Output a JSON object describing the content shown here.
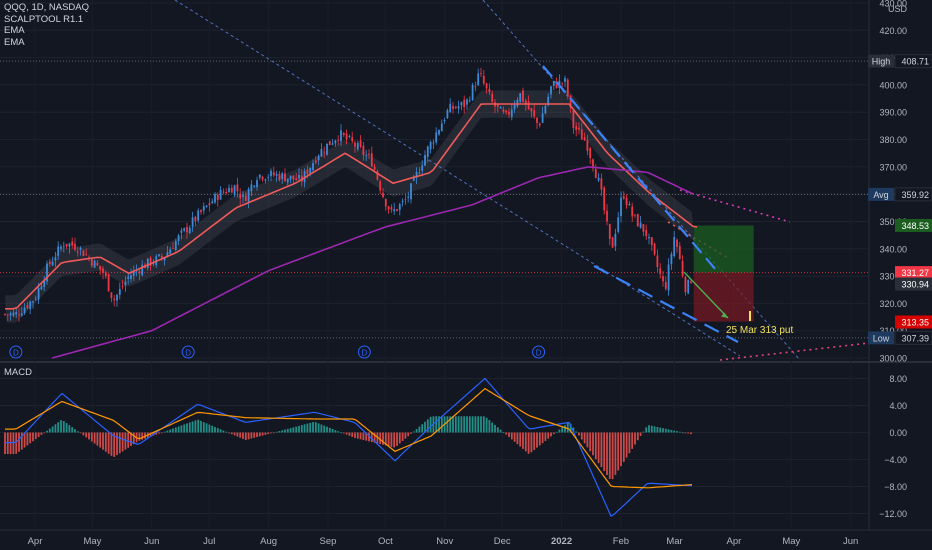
{
  "legend": {
    "symbol": "QQQ, 1D, NASDAQ",
    "indicator1": "SCALPTOOL R1.1",
    "indicator2": "EMA",
    "indicator3": "EMA"
  },
  "currency": "USD",
  "macd_label": "MACD",
  "annotation": "25 Mar 313 put",
  "colors": {
    "background": "#131722",
    "up": "#3d8bd8",
    "down": "#f23645",
    "ema_fast": "#f05a5a",
    "ema_slow": "#9c27b0",
    "macd_line": "#2962ff",
    "signal_line": "#ff9800",
    "hist_pos": "#26a69a",
    "hist_neg": "#ef5350",
    "trendline": "#5b7fd8",
    "target_zone": "#1b5e20",
    "stop_zone": "#7a1a22"
  },
  "chart_data": {
    "type": "line",
    "title": "QQQ, 1D, NASDAQ",
    "price_axis": {
      "ylim": [
        300,
        430
      ],
      "ticks": [
        300,
        310,
        320,
        330,
        340,
        350,
        360,
        370,
        380,
        390,
        400,
        410,
        420,
        430
      ],
      "unit": "USD"
    },
    "macd_axis": {
      "ylim": [
        -14,
        10
      ],
      "ticks": [
        "8.00",
        "4.00",
        "0.00",
        "−4.00",
        "−8.00",
        "−12.00"
      ]
    },
    "x_ticks": [
      "Apr",
      "May",
      "Jun",
      "Jul",
      "Aug",
      "Sep",
      "Oct",
      "Nov",
      "Dec",
      "2022",
      "Feb",
      "Mar",
      "Apr",
      "May",
      "Jun"
    ],
    "price_labels": [
      {
        "text": "High",
        "value": "408.71"
      },
      {
        "text": "Avg",
        "value": "359.92"
      },
      {
        "text": "",
        "value": "348.53"
      },
      {
        "text": "",
        "value": "331.27"
      },
      {
        "text": "",
        "value": "330.94"
      },
      {
        "text": "",
        "value": "313.35"
      },
      {
        "text": "Low",
        "value": "307.39"
      }
    ],
    "close_series": [
      {
        "date": "2021-03-22",
        "close": 316
      },
      {
        "date": "2021-04-01",
        "close": 322
      },
      {
        "date": "2021-04-08",
        "close": 334
      },
      {
        "date": "2021-04-16",
        "close": 342
      },
      {
        "date": "2021-04-23",
        "close": 341
      },
      {
        "date": "2021-04-30",
        "close": 336
      },
      {
        "date": "2021-05-07",
        "close": 331
      },
      {
        "date": "2021-05-12",
        "close": 321
      },
      {
        "date": "2021-05-20",
        "close": 330
      },
      {
        "date": "2021-05-28",
        "close": 334
      },
      {
        "date": "2021-06-07",
        "close": 337
      },
      {
        "date": "2021-06-15",
        "close": 344
      },
      {
        "date": "2021-06-25",
        "close": 352
      },
      {
        "date": "2021-07-06",
        "close": 360
      },
      {
        "date": "2021-07-14",
        "close": 363
      },
      {
        "date": "2021-07-19",
        "close": 358
      },
      {
        "date": "2021-07-26",
        "close": 367
      },
      {
        "date": "2021-08-05",
        "close": 367
      },
      {
        "date": "2021-08-18",
        "close": 365
      },
      {
        "date": "2021-08-27",
        "close": 375
      },
      {
        "date": "2021-09-07",
        "close": 382
      },
      {
        "date": "2021-09-15",
        "close": 378
      },
      {
        "date": "2021-09-24",
        "close": 372
      },
      {
        "date": "2021-09-30",
        "close": 359
      },
      {
        "date": "2021-10-04",
        "close": 353
      },
      {
        "date": "2021-10-12",
        "close": 358
      },
      {
        "date": "2021-10-22",
        "close": 375
      },
      {
        "date": "2021-11-03",
        "close": 391
      },
      {
        "date": "2021-11-12",
        "close": 393
      },
      {
        "date": "2021-11-19",
        "close": 404
      },
      {
        "date": "2021-11-26",
        "close": 393
      },
      {
        "date": "2021-12-03",
        "close": 388
      },
      {
        "date": "2021-12-10",
        "close": 397
      },
      {
        "date": "2021-12-20",
        "close": 385
      },
      {
        "date": "2021-12-27",
        "close": 400
      },
      {
        "date": "2022-01-03",
        "close": 401
      },
      {
        "date": "2022-01-07",
        "close": 385
      },
      {
        "date": "2022-01-14",
        "close": 379
      },
      {
        "date": "2022-01-21",
        "close": 363
      },
      {
        "date": "2022-01-27",
        "close": 339
      },
      {
        "date": "2022-02-02",
        "close": 361
      },
      {
        "date": "2022-02-07",
        "close": 352
      },
      {
        "date": "2022-02-14",
        "close": 346
      },
      {
        "date": "2022-02-24",
        "close": 325
      },
      {
        "date": "2022-03-01",
        "close": 345
      },
      {
        "date": "2022-03-07",
        "close": 325
      },
      {
        "date": "2022-03-11",
        "close": 331
      }
    ],
    "ema_fast": [
      {
        "date": "2021-03-22",
        "value": 318
      },
      {
        "date": "2021-04-15",
        "value": 335
      },
      {
        "date": "2021-05-05",
        "value": 337
      },
      {
        "date": "2021-05-20",
        "value": 331
      },
      {
        "date": "2021-06-15",
        "value": 339
      },
      {
        "date": "2021-07-15",
        "value": 355
      },
      {
        "date": "2021-08-15",
        "value": 364
      },
      {
        "date": "2021-09-10",
        "value": 375
      },
      {
        "date": "2021-10-05",
        "value": 364
      },
      {
        "date": "2021-10-25",
        "value": 368
      },
      {
        "date": "2021-11-20",
        "value": 393
      },
      {
        "date": "2021-12-15",
        "value": 393
      },
      {
        "date": "2022-01-05",
        "value": 393
      },
      {
        "date": "2022-01-25",
        "value": 375
      },
      {
        "date": "2022-02-15",
        "value": 361
      },
      {
        "date": "2022-03-11",
        "value": 348
      }
    ],
    "ema_slow": [
      {
        "date": "2021-04-10",
        "value": 300
      },
      {
        "date": "2021-06-01",
        "value": 310
      },
      {
        "date": "2021-08-01",
        "value": 332
      },
      {
        "date": "2021-10-01",
        "value": 348
      },
      {
        "date": "2021-11-15",
        "value": 356
      },
      {
        "date": "2021-12-20",
        "value": 366
      },
      {
        "date": "2022-01-15",
        "value": 370
      },
      {
        "date": "2022-02-15",
        "value": 368
      },
      {
        "date": "2022-03-11",
        "value": 360
      }
    ],
    "trade_setup": {
      "entry": 331.27,
      "target_zone_top": 348.53,
      "stop_zone_bottom": 313.35,
      "projection": "25 Mar 313 put"
    },
    "macd": [
      {
        "date": "2021-03-22",
        "macd": -1.5,
        "signal": 0.5
      },
      {
        "date": "2021-04-15",
        "macd": 5.8,
        "signal": 4.6
      },
      {
        "date": "2021-05-12",
        "macd": -0.5,
        "signal": 1.8
      },
      {
        "date": "2021-05-25",
        "macd": -1.8,
        "signal": -1.0
      },
      {
        "date": "2021-06-25",
        "macd": 4.2,
        "signal": 3.0
      },
      {
        "date": "2021-07-20",
        "macd": 1.5,
        "signal": 2.2
      },
      {
        "date": "2021-08-25",
        "macd": 3.0,
        "signal": 2.0
      },
      {
        "date": "2021-09-15",
        "macd": 1.5,
        "signal": 2.0
      },
      {
        "date": "2021-10-06",
        "macd": -4.2,
        "signal": -2.8
      },
      {
        "date": "2021-10-25",
        "macd": 1.0,
        "signal": -0.5
      },
      {
        "date": "2021-11-22",
        "macd": 8.0,
        "signal": 6.5
      },
      {
        "date": "2021-12-15",
        "macd": 0.5,
        "signal": 2.5
      },
      {
        "date": "2022-01-05",
        "macd": 1.5,
        "signal": 0.5
      },
      {
        "date": "2022-01-27",
        "macd": -12.5,
        "signal": -8.0
      },
      {
        "date": "2022-02-15",
        "macd": -7.5,
        "signal": -8.2
      },
      {
        "date": "2022-03-11",
        "macd": -7.9,
        "signal": -7.7
      }
    ]
  }
}
